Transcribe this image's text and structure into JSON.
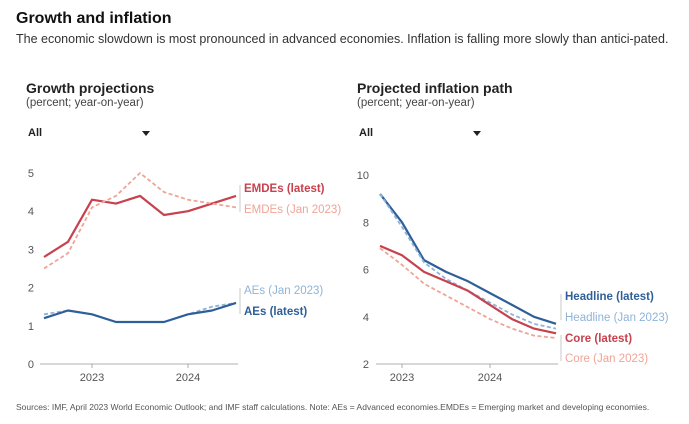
{
  "title": "Growth and inflation",
  "subtitle": "The economic slowdown is most pronounced in advanced economies. Inflation is falling more slowly than antici-pated.",
  "source": "Sources: IMF, April 2023 World Economic Outlook; and IMF staff calculations. Note: AEs = Advanced economies.EMDEs = Emerging market and developing economies.",
  "colors": {
    "emde_latest": "#c8414e",
    "emde_jan": "#f0a496",
    "ae_latest": "#2e5f99",
    "ae_jan": "#8fb3d9",
    "core_latest": "#c8414e",
    "core_jan": "#f0a496",
    "axis_text": "#555555",
    "grid": "#dddddd"
  },
  "panels": {
    "growth": {
      "title": "Growth projections",
      "subtitle": "(percent; year-on-year)",
      "filter": "All"
    },
    "inflation": {
      "title": "Projected inflation path",
      "subtitle": "(percent; year-on-year)",
      "filter": "All"
    }
  },
  "chart_data": [
    {
      "type": "line",
      "title": "Growth projections",
      "ylabel": "(percent; year-on-year)",
      "ylim": [
        0,
        5
      ],
      "yticks": [
        0,
        1,
        2,
        3,
        4,
        5
      ],
      "xticks": [
        {
          "label": "2023",
          "x": 2
        },
        {
          "label": "2024",
          "x": 6
        }
      ],
      "x": [
        0,
        1,
        2,
        3,
        4,
        5,
        6,
        7,
        8,
        9
      ],
      "series": [
        {
          "name": "EMDEs (latest)",
          "key": "emde_latest",
          "dash": false,
          "values": [
            2.8,
            3.2,
            4.3,
            4.2,
            4.4,
            3.9,
            4.0,
            4.2,
            4.4,
            null
          ]
        },
        {
          "name": "EMDEs (Jan 2023)",
          "key": "emde_jan",
          "dash": true,
          "values": [
            2.5,
            2.9,
            4.1,
            4.4,
            5.0,
            4.5,
            4.3,
            4.2,
            4.1,
            null
          ]
        },
        {
          "name": "AEs (Jan 2023)",
          "key": "ae_jan",
          "dash": true,
          "values": [
            1.3,
            1.4,
            1.3,
            1.1,
            1.1,
            1.1,
            1.3,
            1.5,
            1.6,
            null
          ]
        },
        {
          "name": "AEs (latest)",
          "key": "ae_latest",
          "dash": false,
          "values": [
            1.2,
            1.4,
            1.3,
            1.1,
            1.1,
            1.1,
            1.3,
            1.4,
            1.6,
            null
          ]
        }
      ]
    },
    {
      "type": "line",
      "title": "Projected inflation path",
      "ylabel": "(percent; year-on-year)",
      "ylim": [
        2,
        10
      ],
      "yticks": [
        2,
        4,
        6,
        8,
        10
      ],
      "xticks": [
        {
          "label": "2023",
          "x": 1
        },
        {
          "label": "2024",
          "x": 5
        }
      ],
      "x": [
        0,
        1,
        2,
        3,
        4,
        5,
        6,
        7,
        8
      ],
      "series": [
        {
          "name": "Headline (latest)",
          "key": "ae_latest",
          "dash": false,
          "values": [
            9.2,
            8.0,
            6.4,
            5.9,
            5.5,
            5.0,
            4.5,
            4.0,
            3.7
          ]
        },
        {
          "name": "Headline (Jan 2023)",
          "key": "ae_jan",
          "dash": true,
          "values": [
            9.2,
            7.8,
            6.3,
            5.6,
            5.1,
            4.6,
            4.1,
            3.7,
            3.5
          ]
        },
        {
          "name": "Core (latest)",
          "key": "core_latest",
          "dash": false,
          "values": [
            7.0,
            6.6,
            5.9,
            5.5,
            5.1,
            4.5,
            3.9,
            3.5,
            3.3
          ]
        },
        {
          "name": "Core (Jan 2023)",
          "key": "core_jan",
          "dash": true,
          "values": [
            6.9,
            6.2,
            5.4,
            4.9,
            4.4,
            3.9,
            3.5,
            3.2,
            3.1
          ]
        }
      ]
    }
  ]
}
